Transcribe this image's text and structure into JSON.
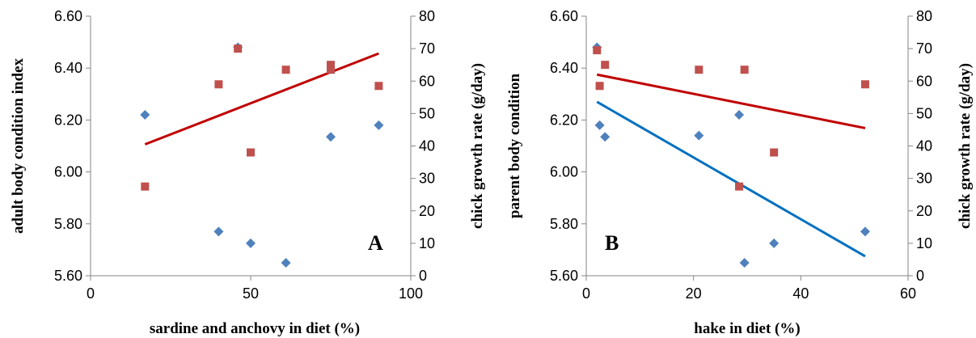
{
  "chart_data": [
    {
      "type": "scatter",
      "panel_label": "A",
      "xlabel": "sardine and anchovy in diet (%)",
      "ylabel": "adult body condition index",
      "y2label": "chick growth rate (g/day)",
      "xlim": [
        0,
        100
      ],
      "xticks": [
        "0",
        "50",
        "100"
      ],
      "ylim": [
        5.6,
        6.6
      ],
      "yticks": [
        "5.60",
        "5.80",
        "6.00",
        "6.20",
        "6.40",
        "6.60"
      ],
      "y2lim": [
        0,
        80
      ],
      "y2ticks": [
        "0",
        "10",
        "20",
        "30",
        "40",
        "50",
        "60",
        "70",
        "80"
      ],
      "grid": false,
      "series": [
        {
          "axis": "left",
          "marker": "diamond",
          "color": "#4f81bd",
          "points": [
            [
              17,
              6.22
            ],
            [
              40,
              5.77
            ],
            [
              46,
              6.48
            ],
            [
              50,
              5.725
            ],
            [
              61,
              5.65
            ],
            [
              75,
              6.135
            ],
            [
              90,
              6.18
            ]
          ]
        },
        {
          "axis": "right",
          "marker": "square",
          "color": "#c0504d",
          "points": [
            [
              17,
              27.5
            ],
            [
              40,
              59
            ],
            [
              46,
              70
            ],
            [
              50,
              38
            ],
            [
              61,
              63.5
            ],
            [
              75,
              65
            ],
            [
              75,
              63.5
            ],
            [
              90,
              58.5
            ]
          ],
          "trendline": {
            "color": "#c00000",
            "from": [
              17,
              40.5
            ],
            "to": [
              90,
              68.5
            ]
          }
        }
      ]
    },
    {
      "type": "scatter",
      "panel_label": "B",
      "xlabel": "hake in diet (%)",
      "ylabel": "parent body condition",
      "y2label": "chick growth rate (g/day)",
      "xlim": [
        0,
        60
      ],
      "xticks": [
        "0",
        "20",
        "40",
        "60"
      ],
      "ylim": [
        5.6,
        6.6
      ],
      "yticks": [
        "5.60",
        "5.80",
        "6.00",
        "6.20",
        "6.40",
        "6.60"
      ],
      "y2lim": [
        0,
        80
      ],
      "y2ticks": [
        "0",
        "10",
        "20",
        "30",
        "40",
        "50",
        "60",
        "70",
        "80"
      ],
      "grid": false,
      "series": [
        {
          "axis": "left",
          "marker": "diamond",
          "color": "#4f81bd",
          "points": [
            [
              2,
              6.48
            ],
            [
              2.5,
              6.18
            ],
            [
              3.5,
              6.135
            ],
            [
              21,
              6.14
            ],
            [
              28.5,
              6.22
            ],
            [
              29.5,
              5.65
            ],
            [
              35,
              5.725
            ],
            [
              52,
              5.77
            ]
          ],
          "trendline": {
            "color": "#0070c0",
            "from": [
              2,
              6.27
            ],
            "to": [
              52,
              5.675
            ]
          }
        },
        {
          "axis": "right",
          "marker": "square",
          "color": "#c0504d",
          "points": [
            [
              2,
              69.5
            ],
            [
              2.5,
              58.5
            ],
            [
              3.5,
              65
            ],
            [
              21,
              63.5
            ],
            [
              28.5,
              27.5
            ],
            [
              29.5,
              63.5
            ],
            [
              35,
              38
            ],
            [
              52,
              59
            ]
          ],
          "trendline": {
            "color": "#c00000",
            "from": [
              2,
              62
            ],
            "to": [
              52,
              45.5
            ]
          }
        }
      ]
    }
  ]
}
